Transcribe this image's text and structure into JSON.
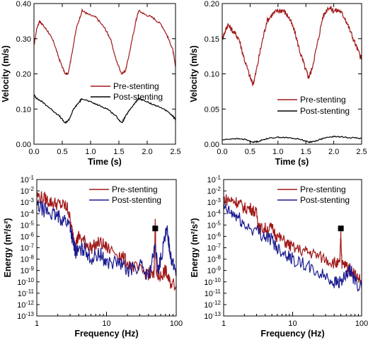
{
  "colors": {
    "pre_time": "#a01818",
    "post_time": "#000000",
    "pre_freq": "#a01818",
    "post_freq": "#1a1a90"
  },
  "chart_data": [
    {
      "id": "a",
      "type": "line",
      "xlabel": "Time (s)",
      "ylabel": "Velocity (m/s)",
      "xlim": [
        0,
        2.5
      ],
      "ylim": [
        0,
        0.4
      ],
      "xticks": [
        "0.0",
        "0.5",
        "1.0",
        "1.5",
        "2.0",
        "2.5"
      ],
      "yticks": [
        "0.00",
        "0.10",
        "0.20",
        "0.30",
        "0.40"
      ],
      "legend": "right-middle",
      "series": [
        {
          "name": "Pre-stenting",
          "color": "pre_time",
          "noise": 0.003,
          "points": [
            [
              0,
              0.28
            ],
            [
              0.05,
              0.33
            ],
            [
              0.1,
              0.35
            ],
            [
              0.15,
              0.34
            ],
            [
              0.25,
              0.32
            ],
            [
              0.35,
              0.29
            ],
            [
              0.45,
              0.24
            ],
            [
              0.55,
              0.2
            ],
            [
              0.6,
              0.2
            ],
            [
              0.65,
              0.24
            ],
            [
              0.75,
              0.33
            ],
            [
              0.85,
              0.38
            ],
            [
              0.95,
              0.37
            ],
            [
              1.1,
              0.36
            ],
            [
              1.25,
              0.33
            ],
            [
              1.35,
              0.3
            ],
            [
              1.45,
              0.24
            ],
            [
              1.55,
              0.2
            ],
            [
              1.62,
              0.21
            ],
            [
              1.7,
              0.27
            ],
            [
              1.8,
              0.35
            ],
            [
              1.85,
              0.38
            ],
            [
              1.95,
              0.37
            ],
            [
              2.1,
              0.36
            ],
            [
              2.25,
              0.34
            ],
            [
              2.35,
              0.31
            ],
            [
              2.45,
              0.27
            ],
            [
              2.5,
              0.22
            ]
          ]
        },
        {
          "name": "Post-stenting",
          "color": "post_time",
          "noise": 0.002,
          "points": [
            [
              0,
              0.14
            ],
            [
              0.05,
              0.13
            ],
            [
              0.15,
              0.12
            ],
            [
              0.3,
              0.1
            ],
            [
              0.45,
              0.08
            ],
            [
              0.55,
              0.06
            ],
            [
              0.62,
              0.07
            ],
            [
              0.7,
              0.1
            ],
            [
              0.8,
              0.12
            ],
            [
              0.85,
              0.13
            ],
            [
              1.0,
              0.12
            ],
            [
              1.15,
              0.11
            ],
            [
              1.3,
              0.1
            ],
            [
              1.45,
              0.08
            ],
            [
              1.55,
              0.06
            ],
            [
              1.62,
              0.08
            ],
            [
              1.7,
              0.1
            ],
            [
              1.8,
              0.12
            ],
            [
              1.85,
              0.13
            ],
            [
              2.0,
              0.12
            ],
            [
              2.15,
              0.11
            ],
            [
              2.3,
              0.1
            ],
            [
              2.45,
              0.08
            ],
            [
              2.5,
              0.07
            ]
          ]
        }
      ]
    },
    {
      "id": "b",
      "type": "line",
      "xlabel": "Time (s)",
      "ylabel": "Velocity (m/s)",
      "xlim": [
        0,
        2.5
      ],
      "ylim": [
        0,
        0.2
      ],
      "xticks": [
        "0.0",
        "0.5",
        "1.0",
        "1.5",
        "2.0",
        "2.5"
      ],
      "yticks": [
        "0.00",
        "0.05",
        "0.10",
        "0.15",
        "0.20"
      ],
      "legend": "right-middle",
      "series": [
        {
          "name": "Pre-stenting",
          "color": "pre_time",
          "noise": 0.004,
          "points": [
            [
              0,
              0.15
            ],
            [
              0.05,
              0.16
            ],
            [
              0.1,
              0.17
            ],
            [
              0.2,
              0.16
            ],
            [
              0.3,
              0.15
            ],
            [
              0.4,
              0.12
            ],
            [
              0.5,
              0.095
            ],
            [
              0.55,
              0.085
            ],
            [
              0.6,
              0.1
            ],
            [
              0.7,
              0.14
            ],
            [
              0.8,
              0.175
            ],
            [
              0.9,
              0.185
            ],
            [
              1.0,
              0.19
            ],
            [
              1.1,
              0.19
            ],
            [
              1.2,
              0.18
            ],
            [
              1.3,
              0.16
            ],
            [
              1.4,
              0.13
            ],
            [
              1.5,
              0.105
            ],
            [
              1.55,
              0.095
            ],
            [
              1.6,
              0.105
            ],
            [
              1.7,
              0.14
            ],
            [
              1.8,
              0.18
            ],
            [
              1.9,
              0.195
            ],
            [
              2.0,
              0.19
            ],
            [
              2.1,
              0.19
            ],
            [
              2.2,
              0.18
            ],
            [
              2.3,
              0.16
            ],
            [
              2.4,
              0.14
            ],
            [
              2.5,
              0.12
            ]
          ]
        },
        {
          "name": "Post-stenting",
          "color": "post_time",
          "noise": 0.0008,
          "points": [
            [
              0,
              0.006
            ],
            [
              0.2,
              0.008
            ],
            [
              0.4,
              0.007
            ],
            [
              0.55,
              0.003
            ],
            [
              0.65,
              0.004
            ],
            [
              0.8,
              0.008
            ],
            [
              1.0,
              0.01
            ],
            [
              1.2,
              0.009
            ],
            [
              1.4,
              0.007
            ],
            [
              1.55,
              0.003
            ],
            [
              1.65,
              0.004
            ],
            [
              1.8,
              0.008
            ],
            [
              2.0,
              0.011
            ],
            [
              2.2,
              0.01
            ],
            [
              2.4,
              0.009
            ],
            [
              2.5,
              0.008
            ]
          ]
        }
      ]
    },
    {
      "id": "c",
      "type": "line",
      "xscale": "log",
      "yscale": "log",
      "xlabel": "Frequency (Hz)",
      "ylabel": "Energy (m²/s²)",
      "xlim": [
        1,
        100
      ],
      "ylim": [
        1e-13,
        0.1
      ],
      "xticks": [
        "1",
        "10",
        "100"
      ],
      "ytick_exps": [
        -1,
        -2,
        -3,
        -4,
        -5,
        -6,
        -7,
        -8,
        -9,
        -10,
        -11,
        -12,
        -13
      ],
      "ytick_base": "10",
      "legend": "top-right",
      "marker_freq": 50,
      "marker_level": 5e-06,
      "series": [
        {
          "name": "Pre-stenting",
          "color": "pre_freq",
          "noise": 0.6,
          "points": [
            [
              1,
              0.004
            ],
            [
              1.3,
              0.002
            ],
            [
              1.6,
              0.001
            ],
            [
              2,
              0.0007
            ],
            [
              2.5,
              0.0005
            ],
            [
              2.8,
              0.0003
            ],
            [
              3.2,
              3e-06
            ],
            [
              3.6,
              2e-07
            ],
            [
              4,
              1e-06
            ],
            [
              5,
              3e-07
            ],
            [
              6,
              1e-07
            ],
            [
              8,
              3e-07
            ],
            [
              10,
              1e-07
            ],
            [
              15,
              3e-08
            ],
            [
              20,
              5e-09
            ],
            [
              30,
              1e-09
            ],
            [
              40,
              5e-10
            ],
            [
              48,
              3e-10
            ],
            [
              50,
              2e-05
            ],
            [
              52,
              3e-10
            ],
            [
              60,
              3e-10
            ],
            [
              70,
              1e-09
            ],
            [
              80,
              1e-10
            ],
            [
              100,
              5e-11
            ]
          ]
        },
        {
          "name": "Post-stenting",
          "color": "post_freq",
          "noise": 0.65,
          "points": [
            [
              1,
              0.0005
            ],
            [
              1.3,
              0.0002
            ],
            [
              1.6,
              0.0001
            ],
            [
              2,
              5e-05
            ],
            [
              2.5,
              3e-05
            ],
            [
              3,
              1e-05
            ],
            [
              3.3,
              3e-07
            ],
            [
              3.6,
              5e-08
            ],
            [
              4,
              5e-08
            ],
            [
              5,
              8e-08
            ],
            [
              6,
              1e-08
            ],
            [
              8,
              3e-08
            ],
            [
              10,
              5e-09
            ],
            [
              15,
              5e-09
            ],
            [
              20,
              1e-09
            ],
            [
              30,
              3e-09
            ],
            [
              40,
              3e-10
            ],
            [
              50,
              1e-07
            ],
            [
              55,
              1e-09
            ],
            [
              60,
              1e-08
            ],
            [
              70,
              1e-06
            ],
            [
              75,
              3e-06
            ],
            [
              80,
              1e-07
            ],
            [
              90,
              3e-09
            ],
            [
              100,
              1e-09
            ]
          ]
        }
      ]
    },
    {
      "id": "d",
      "type": "line",
      "xscale": "log",
      "yscale": "log",
      "xlabel": "Frequency (Hz)",
      "ylabel": "Energy (m²/s²)",
      "xlim": [
        1,
        100
      ],
      "ylim": [
        1e-13,
        0.1
      ],
      "xticks": [
        "1",
        "10",
        "100"
      ],
      "ytick_exps": [
        -1,
        -2,
        -3,
        -4,
        -5,
        -6,
        -7,
        -8,
        -9,
        -10,
        -11,
        -12,
        -13
      ],
      "ytick_base": "10",
      "legend": "top-right",
      "marker_freq": 50,
      "marker_level": 5e-06,
      "series": [
        {
          "name": "Pre-stenting",
          "color": "pre_freq",
          "noise": 0.55,
          "points": [
            [
              1,
              0.002
            ],
            [
              1.3,
              0.0015
            ],
            [
              1.6,
              0.001
            ],
            [
              2,
              0.0003
            ],
            [
              2.5,
              0.0003
            ],
            [
              3,
              0.0001
            ],
            [
              3.3,
              5e-06
            ],
            [
              4,
              5e-06
            ],
            [
              5,
              5e-06
            ],
            [
              6,
              1e-06
            ],
            [
              8,
              3e-07
            ],
            [
              10,
              1e-07
            ],
            [
              15,
              5e-08
            ],
            [
              20,
              3e-08
            ],
            [
              30,
              1e-08
            ],
            [
              40,
              5e-09
            ],
            [
              48,
              3e-09
            ],
            [
              50,
              1e-06
            ],
            [
              52,
              3e-09
            ],
            [
              60,
              3e-09
            ],
            [
              70,
              1e-09
            ],
            [
              80,
              5e-10
            ],
            [
              100,
              1e-10
            ]
          ]
        },
        {
          "name": "Post-stenting",
          "color": "post_freq",
          "noise": 0.6,
          "points": [
            [
              1,
              0.0003
            ],
            [
              1.3,
              0.0001
            ],
            [
              1.6,
              5e-05
            ],
            [
              2,
              1e-05
            ],
            [
              3,
              3e-06
            ],
            [
              4,
              1e-06
            ],
            [
              5,
              5e-07
            ],
            [
              6,
              1e-07
            ],
            [
              8,
              3e-08
            ],
            [
              10,
              1e-08
            ],
            [
              15,
              3e-09
            ],
            [
              20,
              1e-09
            ],
            [
              30,
              3e-10
            ],
            [
              40,
              1e-10
            ],
            [
              50,
              1e-10
            ],
            [
              60,
              3e-10
            ],
            [
              70,
              1e-09
            ],
            [
              80,
              1e-10
            ],
            [
              100,
              3e-11
            ]
          ]
        }
      ]
    }
  ]
}
